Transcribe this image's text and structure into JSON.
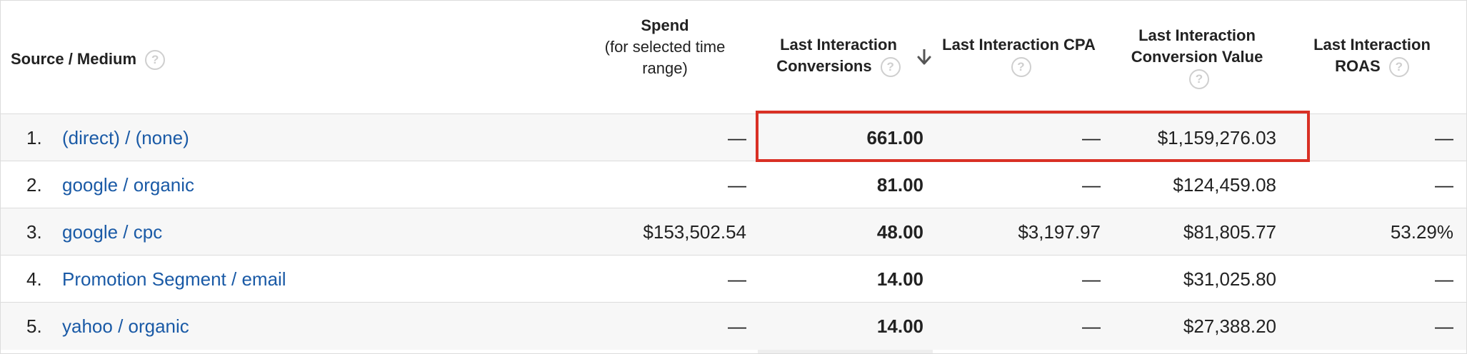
{
  "headers": {
    "source_medium": "Source / Medium",
    "spend_title": "Spend",
    "spend_sub": "(for selected time range)",
    "conversions_line1": "Last Interaction",
    "conversions_line2": "Conversions",
    "cpa": "Last Interaction CPA",
    "value_line1": "Last Interaction",
    "value_line2": "Conversion Value",
    "roas_line1": "Last Interaction",
    "roas_line2": "ROAS",
    "help_glyph": "?"
  },
  "rows": [
    {
      "index": "1.",
      "source": "(direct) / (none)",
      "spend": "—",
      "conversions": "661.00",
      "cpa": "—",
      "value": "$1,159,276.03",
      "roas": "—"
    },
    {
      "index": "2.",
      "source": "google / organic",
      "spend": "—",
      "conversions": "81.00",
      "cpa": "—",
      "value": "$124,459.08",
      "roas": "—"
    },
    {
      "index": "3.",
      "source": "google / cpc",
      "spend": "$153,502.54",
      "conversions": "48.00",
      "cpa": "$3,197.97",
      "value": "$81,805.77",
      "roas": "53.29%"
    },
    {
      "index": "4.",
      "source": "Promotion Segment / email",
      "spend": "—",
      "conversions": "14.00",
      "cpa": "—",
      "value": "$31,025.80",
      "roas": "—"
    },
    {
      "index": "5.",
      "source": "yahoo / organic",
      "spend": "—",
      "conversions": "14.00",
      "cpa": "—",
      "value": "$27,388.20",
      "roas": "—"
    }
  ],
  "colors": {
    "link": "#1a5aa6",
    "highlight": "#d93025"
  },
  "icons": {
    "help": "question-circle-icon",
    "sort": "arrow-down-icon"
  }
}
